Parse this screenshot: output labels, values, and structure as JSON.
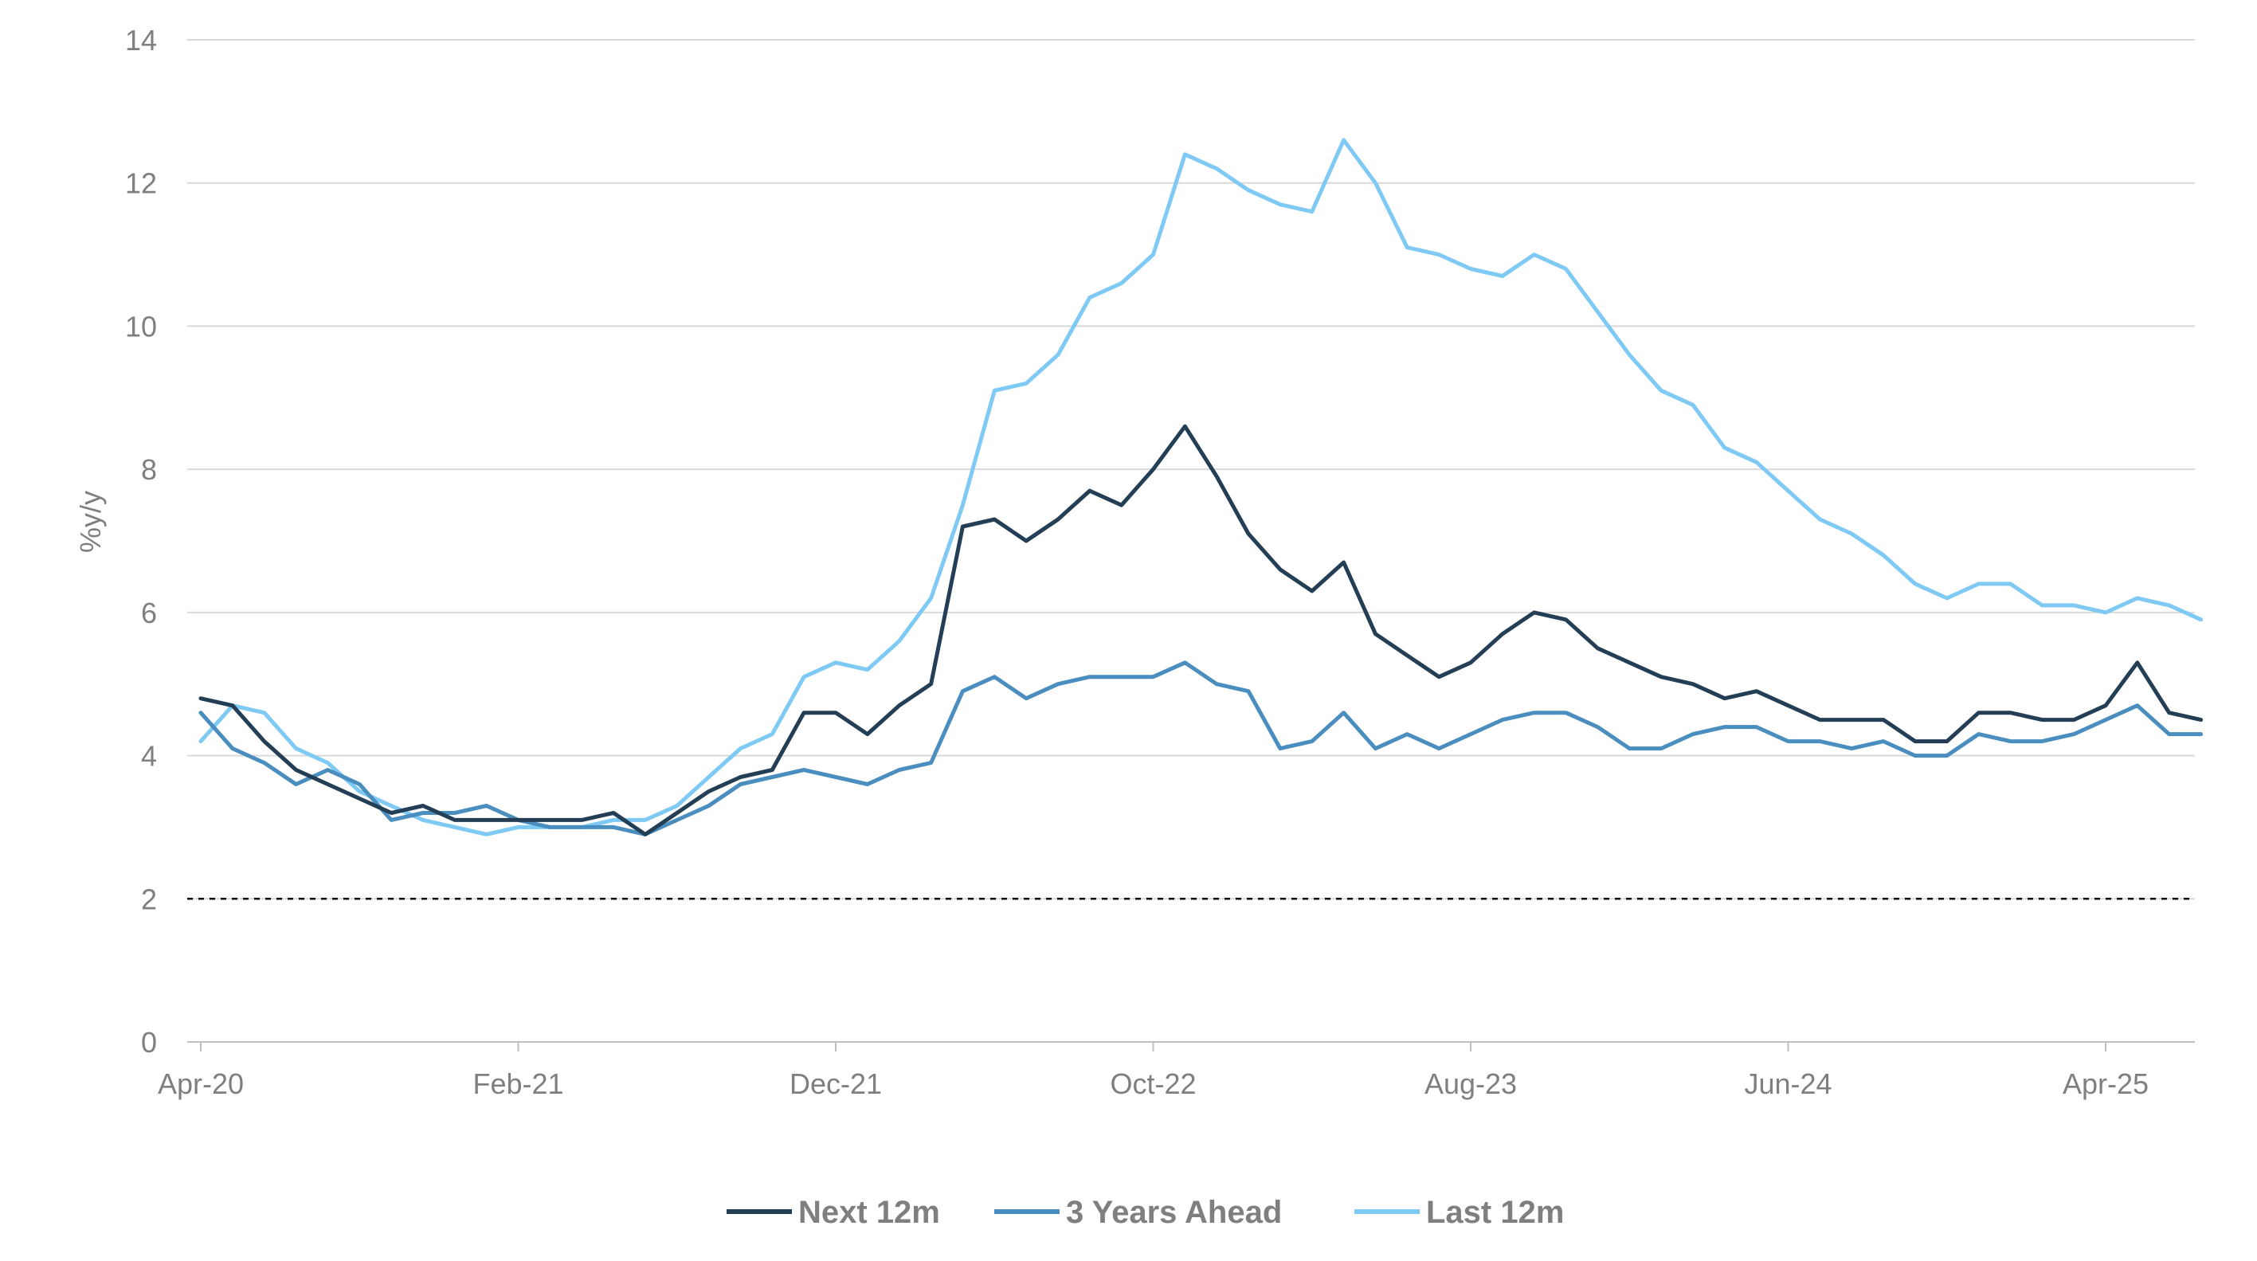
{
  "chart_data": {
    "type": "line",
    "title": "",
    "xlabel": "",
    "ylabel": "%y/y",
    "ylim": [
      0,
      14
    ],
    "yticks": [
      "0",
      "2",
      "4",
      "6",
      "8",
      "10",
      "12",
      "14"
    ],
    "xtick_labels": [
      "Apr-20",
      "Feb-21",
      "Dec-21",
      "Oct-22",
      "Aug-23",
      "Jun-24",
      "Apr-25"
    ],
    "x": [
      "Apr-20",
      "May-20",
      "Jun-20",
      "Jul-20",
      "Aug-20",
      "Sep-20",
      "Oct-20",
      "Nov-20",
      "Dec-20",
      "Jan-21",
      "Feb-21",
      "Mar-21",
      "Apr-21",
      "May-21",
      "Jun-21",
      "Jul-21",
      "Aug-21",
      "Sep-21",
      "Oct-21",
      "Nov-21",
      "Dec-21",
      "Jan-22",
      "Feb-22",
      "Mar-22",
      "Apr-22",
      "May-22",
      "Jun-22",
      "Jul-22",
      "Aug-22",
      "Sep-22",
      "Oct-22",
      "Nov-22",
      "Dec-22",
      "Jan-23",
      "Feb-23",
      "Mar-23",
      "Apr-23",
      "May-23",
      "Jun-23",
      "Jul-23",
      "Aug-23",
      "Sep-23",
      "Oct-23",
      "Nov-23",
      "Dec-23",
      "Jan-24",
      "Feb-24",
      "Mar-24",
      "Apr-24",
      "May-24",
      "Jun-24",
      "Jul-24",
      "Aug-24",
      "Sep-24",
      "Oct-24",
      "Nov-24",
      "Dec-24",
      "Jan-25",
      "Feb-25",
      "Mar-25",
      "Apr-25",
      "May-25",
      "Jun-25",
      "Jul-25"
    ],
    "reference_line": {
      "y": 2,
      "style": "dashed",
      "color": "#000000"
    },
    "series": [
      {
        "name": "Next 12m",
        "color": "#243f55",
        "values": [
          4.8,
          4.7,
          4.2,
          3.8,
          3.6,
          3.4,
          3.2,
          3.3,
          3.1,
          3.1,
          3.1,
          3.1,
          3.1,
          3.2,
          2.9,
          3.2,
          3.5,
          3.7,
          3.8,
          4.6,
          4.6,
          4.3,
          4.7,
          5.0,
          7.2,
          7.3,
          7.0,
          7.3,
          7.7,
          7.5,
          8.0,
          8.6,
          7.9,
          7.1,
          6.6,
          6.3,
          6.7,
          5.7,
          5.4,
          5.1,
          5.3,
          5.7,
          6.0,
          5.9,
          5.5,
          5.3,
          5.1,
          5.0,
          4.8,
          4.9,
          4.7,
          4.5,
          4.5,
          4.5,
          4.2,
          4.2,
          4.6,
          4.6,
          4.5,
          4.5,
          4.7,
          5.3,
          4.6,
          4.5
        ]
      },
      {
        "name": "3 Years Ahead",
        "color": "#4a8dbf",
        "values": [
          4.6,
          4.1,
          3.9,
          3.6,
          3.8,
          3.6,
          3.1,
          3.2,
          3.2,
          3.3,
          3.1,
          3.0,
          3.0,
          3.0,
          2.9,
          3.1,
          3.3,
          3.6,
          3.7,
          3.8,
          3.7,
          3.6,
          3.8,
          3.9,
          4.9,
          5.1,
          4.8,
          5.0,
          5.1,
          5.1,
          5.1,
          5.3,
          5.0,
          4.9,
          4.1,
          4.2,
          4.6,
          4.1,
          4.3,
          4.1,
          4.3,
          4.5,
          4.6,
          4.6,
          4.4,
          4.1,
          4.1,
          4.3,
          4.4,
          4.4,
          4.2,
          4.2,
          4.1,
          4.2,
          4.0,
          4.0,
          4.3,
          4.2,
          4.2,
          4.3,
          4.5,
          4.7,
          4.3,
          4.3
        ]
      },
      {
        "name": "Last 12m",
        "color": "#7fcaf5",
        "values": [
          4.2,
          4.7,
          4.6,
          4.1,
          3.9,
          3.5,
          3.3,
          3.1,
          3.0,
          2.9,
          3.0,
          3.0,
          3.0,
          3.1,
          3.1,
          3.3,
          3.7,
          4.1,
          4.3,
          5.1,
          5.3,
          5.2,
          5.6,
          6.2,
          7.5,
          9.1,
          9.2,
          9.6,
          10.4,
          10.6,
          11.0,
          12.4,
          12.2,
          11.9,
          11.7,
          11.6,
          12.6,
          12.0,
          11.1,
          11.0,
          10.8,
          10.7,
          11.0,
          10.8,
          10.2,
          9.6,
          9.1,
          8.9,
          8.3,
          8.1,
          7.7,
          7.3,
          7.1,
          6.8,
          6.4,
          6.2,
          6.4,
          6.4,
          6.1,
          6.1,
          6.0,
          6.2,
          6.1,
          5.9
        ]
      }
    ],
    "legend": {
      "position": "bottom-center"
    }
  }
}
